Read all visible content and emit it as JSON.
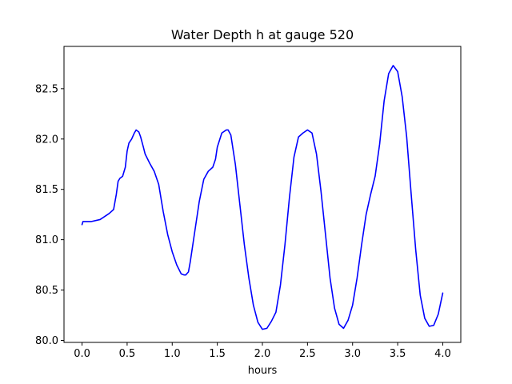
{
  "chart_data": {
    "type": "line",
    "title": "Water Depth h at gauge 520",
    "xlabel": "hours",
    "ylabel": "",
    "xlim": [
      -0.2,
      4.2
    ],
    "ylim": [
      79.98,
      82.92
    ],
    "xticks": [
      0.0,
      0.5,
      1.0,
      1.5,
      2.0,
      2.5,
      3.0,
      3.5,
      4.0
    ],
    "xtick_labels": [
      "0.0",
      "0.5",
      "1.0",
      "1.5",
      "2.0",
      "2.5",
      "3.0",
      "3.5",
      "4.0"
    ],
    "yticks": [
      80.0,
      80.5,
      81.0,
      81.5,
      82.0,
      82.5
    ],
    "ytick_labels": [
      "80.0",
      "80.5",
      "81.0",
      "81.5",
      "82.0",
      "82.5"
    ],
    "grid": false,
    "series": [
      {
        "color": "#0000ff",
        "x": [
          0.0,
          0.01,
          0.1,
          0.2,
          0.25,
          0.3,
          0.35,
          0.38,
          0.4,
          0.42,
          0.45,
          0.48,
          0.5,
          0.52,
          0.55,
          0.58,
          0.6,
          0.63,
          0.65,
          0.68,
          0.7,
          0.75,
          0.8,
          0.85,
          0.9,
          0.95,
          1.0,
          1.05,
          1.1,
          1.13,
          1.15,
          1.18,
          1.2,
          1.25,
          1.3,
          1.35,
          1.4,
          1.45,
          1.48,
          1.5,
          1.55,
          1.6,
          1.62,
          1.65,
          1.7,
          1.75,
          1.8,
          1.85,
          1.9,
          1.95,
          2.0,
          2.05,
          2.1,
          2.15,
          2.2,
          2.25,
          2.3,
          2.35,
          2.4,
          2.45,
          2.5,
          2.55,
          2.6,
          2.65,
          2.7,
          2.75,
          2.8,
          2.85,
          2.9,
          2.95,
          3.0,
          3.05,
          3.1,
          3.15,
          3.2,
          3.25,
          3.3,
          3.35,
          3.4,
          3.45,
          3.5,
          3.55,
          3.6,
          3.65,
          3.7,
          3.75,
          3.8,
          3.85,
          3.9,
          3.95,
          4.0
        ],
        "y": [
          81.15,
          81.18,
          81.18,
          81.2,
          81.23,
          81.26,
          81.3,
          81.45,
          81.58,
          81.61,
          81.63,
          81.72,
          81.88,
          81.96,
          82.0,
          82.06,
          82.09,
          82.07,
          82.02,
          81.92,
          81.85,
          81.76,
          81.68,
          81.55,
          81.28,
          81.05,
          80.88,
          80.75,
          80.66,
          80.65,
          80.65,
          80.68,
          80.78,
          81.08,
          81.38,
          81.6,
          81.68,
          81.72,
          81.8,
          81.92,
          82.06,
          82.09,
          82.09,
          82.04,
          81.75,
          81.35,
          80.95,
          80.62,
          80.35,
          80.18,
          80.11,
          80.12,
          80.19,
          80.28,
          80.55,
          80.95,
          81.42,
          81.82,
          82.02,
          82.06,
          82.09,
          82.06,
          81.85,
          81.48,
          81.05,
          80.62,
          80.32,
          80.16,
          80.12,
          80.2,
          80.35,
          80.62,
          80.95,
          81.25,
          81.45,
          81.63,
          81.95,
          82.38,
          82.65,
          82.73,
          82.67,
          82.42,
          82.02,
          81.45,
          80.9,
          80.45,
          80.22,
          80.14,
          80.15,
          80.26,
          80.47
        ]
      }
    ]
  }
}
